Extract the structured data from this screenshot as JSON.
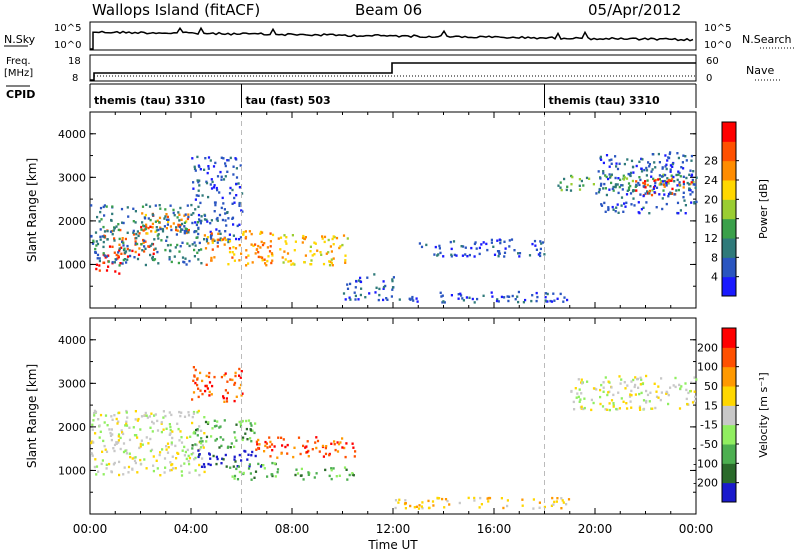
{
  "header": {
    "station": "Wallops Island (fitACF)",
    "beam": "Beam 06",
    "date": "05/Apr/2012"
  },
  "strips": {
    "nsky_label": "N.Sky",
    "nsky_ticks": [
      "10^5",
      "10^0"
    ],
    "nsearch_label": "N.Search",
    "nsearch_ticks": [
      "10^5",
      "10^0"
    ],
    "freq_label": "Freq.",
    "freq_unit": "[MHz]",
    "freq_ticks": [
      "18",
      "8"
    ],
    "nave_label": "Nave",
    "nave_ticks": [
      "60",
      "0"
    ],
    "cpid_label": "CPID",
    "cpid_segments": [
      {
        "label": "themis (tau) 3310",
        "start": 0
      },
      {
        "label": "tau (fast) 503",
        "start": 6
      },
      {
        "label": "themis (tau) 3310",
        "start": 18
      }
    ]
  },
  "chart_data": [
    {
      "type": "heatmap",
      "name": "power",
      "xlabel": "",
      "ylabel": "Slant Range [km]",
      "x_range_hours": [
        0,
        24
      ],
      "ylim": [
        0,
        4500
      ],
      "y_ticks": [
        1000,
        2000,
        3000,
        4000
      ],
      "colorbar": {
        "label": "Power [dB]",
        "ticks": [
          "4",
          "8",
          "12",
          "16",
          "20",
          "24",
          "28"
        ],
        "colors": [
          "#1a1aff",
          "#2a55c0",
          "#2f7a7a",
          "#3aa04a",
          "#9acd32",
          "#ffd700",
          "#ff8c00",
          "#ff5000",
          "#ff0000"
        ]
      },
      "regions": [
        {
          "x": [
            0.2,
            1.2
          ],
          "y": [
            800,
            1300
          ],
          "level": 8
        },
        {
          "x": [
            0.5,
            2.5
          ],
          "y": [
            1200,
            1900
          ],
          "level": 7
        },
        {
          "x": [
            2.0,
            4.0
          ],
          "y": [
            1700,
            2200
          ],
          "level": 6
        },
        {
          "x": [
            0.0,
            4.5
          ],
          "y": [
            1000,
            2400
          ],
          "level": 2
        },
        {
          "x": [
            4.0,
            6.0
          ],
          "y": [
            1500,
            3500
          ],
          "level": 1
        },
        {
          "x": [
            4.5,
            7.5
          ],
          "y": [
            1000,
            1800
          ],
          "level": 6
        },
        {
          "x": [
            7.5,
            10.2
          ],
          "y": [
            1000,
            1700
          ],
          "level": 5
        },
        {
          "x": [
            10.0,
            12.0
          ],
          "y": [
            200,
            800
          ],
          "level": 1
        },
        {
          "x": [
            12.0,
            19.0
          ],
          "y": [
            150,
            400
          ],
          "level": 1
        },
        {
          "x": [
            13.0,
            18.0
          ],
          "y": [
            1200,
            1600
          ],
          "level": 1
        },
        {
          "x": [
            18.5,
            24.0
          ],
          "y": [
            2700,
            3100
          ],
          "level": 3
        },
        {
          "x": [
            21.5,
            24.0
          ],
          "y": [
            2600,
            3000
          ],
          "level": 7
        },
        {
          "x": [
            20.0,
            24.0
          ],
          "y": [
            2200,
            3600
          ],
          "level": 1
        }
      ]
    },
    {
      "type": "heatmap",
      "name": "velocity",
      "xlabel": "Time UT",
      "ylabel": "Slant Range [km]",
      "x_range_hours": [
        0,
        24
      ],
      "x_ticks": [
        "00:00",
        "04:00",
        "08:00",
        "12:00",
        "16:00",
        "20:00",
        "00:00"
      ],
      "ylim": [
        0,
        4500
      ],
      "y_ticks": [
        1000,
        2000,
        3000,
        4000
      ],
      "colorbar": {
        "label": "Velocity [m s⁻¹]",
        "ticks": [
          "200",
          "100",
          "50",
          "15",
          "-15",
          "-50",
          "-100",
          "-200"
        ],
        "colors": [
          "#1a1acc",
          "#2a6a2a",
          "#4caf50",
          "#90ee60",
          "#c8c8c8",
          "#ffd700",
          "#ff9900",
          "#ff5000",
          "#ff0000"
        ]
      },
      "regions": [
        {
          "x": [
            0.0,
            4.5
          ],
          "y": [
            900,
            2400
          ],
          "level": 4
        },
        {
          "x": [
            4.0,
            6.5
          ],
          "y": [
            1500,
            2200
          ],
          "level": 2
        },
        {
          "x": [
            4.2,
            6.8
          ],
          "y": [
            1100,
            1500
          ],
          "level": 0
        },
        {
          "x": [
            5.5,
            7.5
          ],
          "y": [
            800,
            1200
          ],
          "level": 2
        },
        {
          "x": [
            6.5,
            10.5
          ],
          "y": [
            1300,
            1800
          ],
          "level": 7
        },
        {
          "x": [
            8.0,
            10.5
          ],
          "y": [
            800,
            1100
          ],
          "level": 2
        },
        {
          "x": [
            4.0,
            6.0
          ],
          "y": [
            2600,
            3400
          ],
          "level": 7
        },
        {
          "x": [
            19.0,
            24.0
          ],
          "y": [
            2400,
            3200
          ],
          "level": 4
        },
        {
          "x": [
            12.0,
            19.0
          ],
          "y": [
            150,
            400
          ],
          "level": 5
        }
      ]
    }
  ]
}
